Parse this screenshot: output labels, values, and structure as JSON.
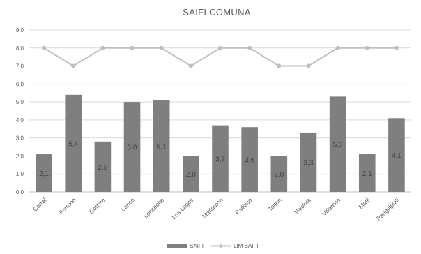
{
  "chart_data": {
    "type": "bar",
    "title": "SAIFI COMUNA",
    "xlabel": "",
    "ylabel": "",
    "ylim": [
      0,
      9
    ],
    "yticks": [
      "0,0",
      "1,0",
      "2,0",
      "3,0",
      "4,0",
      "5,0",
      "6,0",
      "7,0",
      "8,0",
      "9,0"
    ],
    "categories": [
      "Corral",
      "Futrono",
      "Gorbea",
      "Lanco",
      "Loncoche",
      "Los Lagos",
      "Mariquina",
      "Paillaco",
      "Tolten",
      "Valdivia",
      "Villarrica",
      "Mafil",
      "Panguipulli"
    ],
    "grid": true,
    "legend_position": "bottom",
    "series": [
      {
        "name": "SAIFI",
        "kind": "bar",
        "color": "#7f7f7f",
        "values": [
          2.1,
          5.4,
          2.8,
          5.0,
          5.1,
          2.0,
          3.7,
          3.6,
          2.0,
          3.3,
          5.3,
          2.1,
          4.1
        ],
        "labels": [
          "2,1",
          "5,4",
          "2,8",
          "5,0",
          "5,1",
          "2,0",
          "3,7",
          "3,6",
          "2,0",
          "3,3",
          "5,3",
          "2,1",
          "4,1"
        ]
      },
      {
        "name": "LIM SAIFI",
        "kind": "line",
        "color": "#bfbfbf",
        "values": [
          8,
          7,
          8,
          8,
          8,
          7,
          8,
          8,
          7,
          7,
          8,
          8,
          8
        ]
      }
    ]
  }
}
